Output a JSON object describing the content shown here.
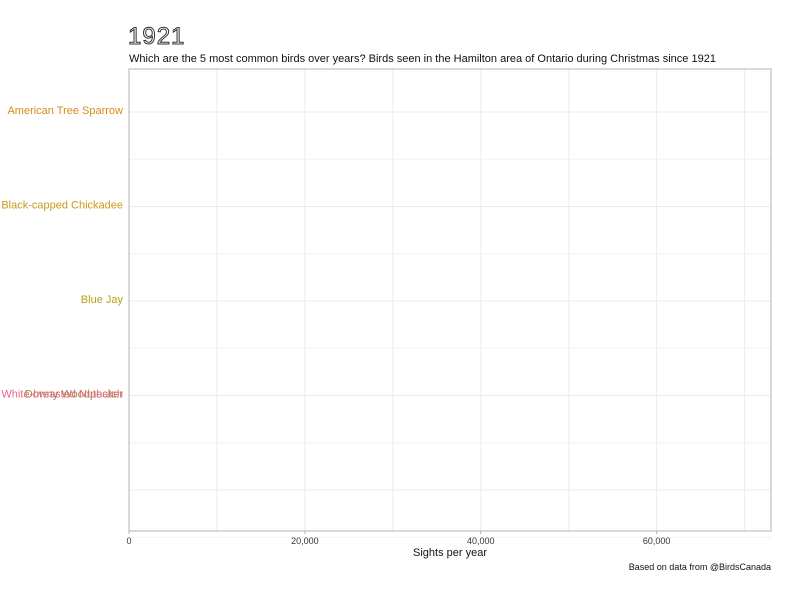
{
  "header": {
    "year": "1921",
    "subtitle": "Which are the 5 most common birds over years? Birds seen in the Hamilton area of Ontario during Christmas since 1921"
  },
  "footer": {
    "caption": "Based on data from @BirdsCanada"
  },
  "chart_data": {
    "type": "bar",
    "orientation": "horizontal",
    "xlabel": "Sights per year",
    "xlim": [
      0,
      73000
    ],
    "xticks": [
      0,
      20000,
      40000,
      60000
    ],
    "xtick_labels": [
      "0",
      "20,000",
      "40,000",
      "60,000"
    ],
    "grid": true,
    "rank_slots": 5,
    "series": [
      {
        "name": "American Tree Sparrow",
        "rank": 1,
        "value": 0,
        "color": "#d98a1a"
      },
      {
        "name": "Black-capped Chickadee",
        "rank": 2,
        "value": 0,
        "color": "#c89a1a"
      },
      {
        "name": "Blue Jay",
        "rank": 3,
        "value": 0,
        "color": "#b8a212"
      },
      {
        "name": "Downy Woodpecker",
        "rank": 4,
        "value": 0,
        "color": "#9e8c3a"
      },
      {
        "name": "White-breasted Nuthatch",
        "rank": 4,
        "value": 0,
        "color": "#e8648c"
      }
    ]
  }
}
